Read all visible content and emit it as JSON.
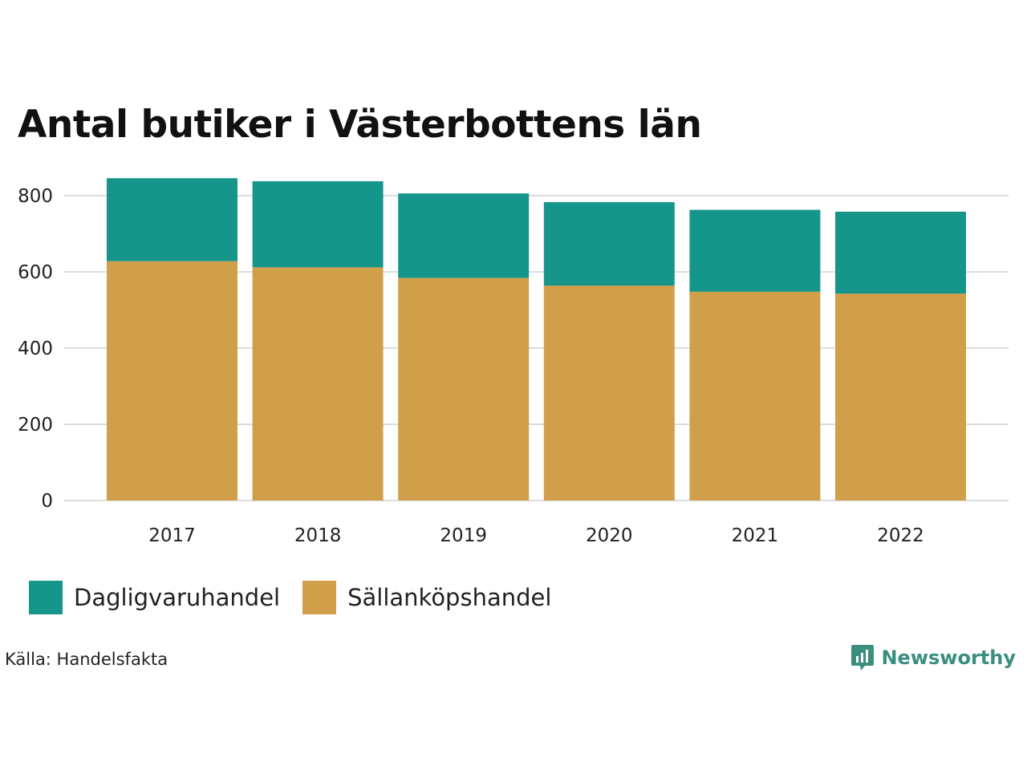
{
  "title": "Antal butiker i Västerbottens län",
  "source": "Källa: Handelsfakta",
  "brand": "Newsworthy",
  "colors": {
    "dagligvaruhandel": "#16968a",
    "sallankopshandel": "#d19f49",
    "grid": "#dddddd",
    "brand": "#3a8f7f"
  },
  "chart_data": {
    "type": "bar",
    "stacked": true,
    "title": "Antal butiker i Västerbottens län",
    "xlabel": "",
    "ylabel": "",
    "categories": [
      "2017",
      "2018",
      "2019",
      "2020",
      "2021",
      "2022"
    ],
    "series": [
      {
        "name": "Sällanköpshandel",
        "values": [
          628,
          612,
          584,
          564,
          548,
          543
        ]
      },
      {
        "name": "Dagligvaruhandel",
        "values": [
          218,
          226,
          222,
          219,
          215,
          215
        ]
      }
    ],
    "yticks": [
      0,
      200,
      400,
      600,
      800
    ],
    "ylim": [
      0,
      900
    ],
    "grid": true,
    "legend": "bottom-left"
  },
  "legend": {
    "items": [
      {
        "label": "Dagligvaruhandel",
        "icon": "square-swatch"
      },
      {
        "label": "Sällanköpshandel",
        "icon": "square-swatch"
      }
    ]
  }
}
